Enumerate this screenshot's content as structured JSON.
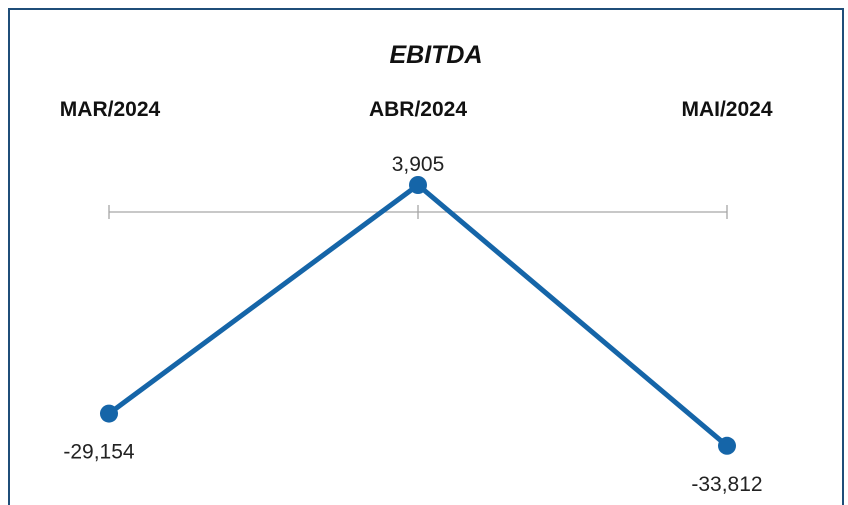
{
  "chart_data": {
    "type": "line",
    "title": "EBITDA",
    "categories": [
      "MAR/2024",
      "ABR/2024",
      "MAI/2024"
    ],
    "series": [
      {
        "values": [
          -29154,
          3905,
          -33812
        ],
        "labels": [
          "-29,154",
          "3,905",
          "-33,812"
        ],
        "color": "#1565a8"
      }
    ],
    "ylim": [
      -36000,
      6000
    ],
    "grid": false,
    "legend": "none",
    "axis_color": "#a6a6a6"
  }
}
